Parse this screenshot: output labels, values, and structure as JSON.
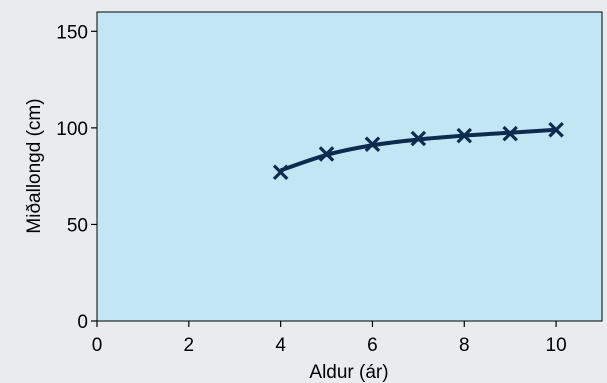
{
  "chart_data": {
    "type": "scatter",
    "title": "",
    "xlabel": "Aldur (ár)",
    "ylabel": "Miðallongd (cm)",
    "xlim": [
      0,
      11
    ],
    "ylim": [
      0,
      160
    ],
    "x_ticks": [
      0,
      2,
      4,
      6,
      8,
      10
    ],
    "y_ticks": [
      0,
      50,
      100,
      150
    ],
    "x_tick_labels": [
      "0",
      "2",
      "4",
      "6",
      "8",
      "10"
    ],
    "y_tick_labels": [
      "0",
      "50",
      "100",
      "150"
    ],
    "grid": false,
    "series": [
      {
        "marker": "x",
        "x": [
          4,
          5,
          6,
          7,
          8,
          9,
          10
        ],
        "y": [
          77,
          86.5,
          91.5,
          94.5,
          96,
          97,
          99
        ]
      }
    ],
    "fitted_curve": {
      "x": [
        4,
        5,
        6,
        7,
        8,
        9,
        10
      ],
      "y": [
        78,
        86,
        91,
        94,
        96,
        97.5,
        99
      ]
    },
    "colors": {
      "background": "#e9ecef",
      "plot_area": "#c3e6f5",
      "series": "#0d2b4e",
      "axis": "#000000"
    }
  }
}
